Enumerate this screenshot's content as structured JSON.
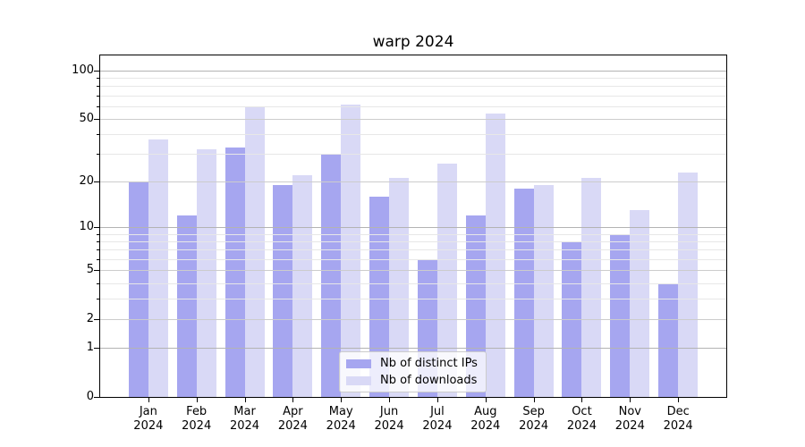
{
  "chart_data": {
    "type": "bar",
    "title": "warp 2024",
    "categories": [
      "Jan 2024",
      "Feb 2024",
      "Mar 2024",
      "Apr 2024",
      "May 2024",
      "Jun 2024",
      "Jul 2024",
      "Aug 2024",
      "Sep 2024",
      "Oct 2024",
      "Nov 2024",
      "Dec 2024"
    ],
    "series": [
      {
        "name": "Nb of distinct IPs",
        "color": "#a6a6f0",
        "values": [
          20,
          12,
          33,
          19,
          30,
          16,
          6,
          12,
          18,
          8,
          9,
          4
        ]
      },
      {
        "name": "Nb of downloads",
        "color": "#d9d9f6",
        "values": [
          37,
          32,
          59,
          22,
          61,
          21,
          26,
          54,
          19,
          21,
          13,
          23
        ]
      }
    ],
    "xlabel": "",
    "ylabel": "",
    "yscale": "log1p",
    "ylim": [
      0,
      124
    ],
    "y_tick_labels": [
      0,
      1,
      2,
      5,
      10,
      20,
      50,
      100
    ],
    "gridlines_major": [
      1,
      10,
      100
    ],
    "gridlines_mid": [
      2,
      5,
      20,
      50
    ],
    "gridlines_minor": [
      3,
      4,
      6,
      7,
      8,
      9,
      30,
      40,
      60,
      70,
      80,
      90
    ],
    "grid": "on",
    "legend_position": "lower center"
  }
}
